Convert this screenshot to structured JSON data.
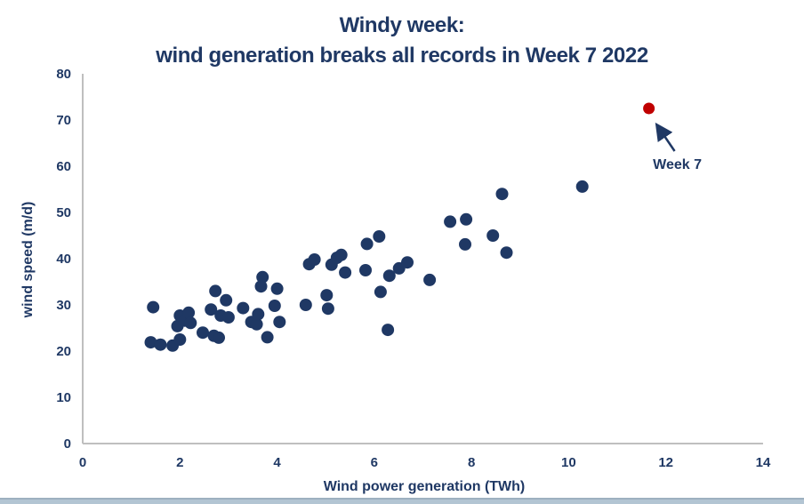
{
  "title": {
    "line1": "Windy week:",
    "line2": "wind generation breaks all records in Week 7 2022"
  },
  "colors": {
    "navy": "#1f3864",
    "record_red": "#c00000",
    "axis_gray": "#bfbfbf",
    "bottom_strip": "#b3c5d3"
  },
  "chart_data": {
    "type": "scatter",
    "title": "Windy week: wind generation breaks all records in Week 7 2022",
    "xlabel": "Wind power generation (TWh)",
    "ylabel": "wind speed (m/d)",
    "xlim": [
      0,
      14
    ],
    "ylim": [
      0,
      80
    ],
    "xticks": [
      0,
      2,
      4,
      6,
      8,
      10,
      12,
      14
    ],
    "yticks": [
      0,
      10,
      20,
      30,
      40,
      50,
      60,
      70,
      80
    ],
    "grid": false,
    "legend": "none",
    "series": [
      {
        "color": "#1f3864",
        "points": [
          [
            1.45,
            29.5
          ],
          [
            1.4,
            21.9
          ],
          [
            1.6,
            21.4
          ],
          [
            1.85,
            21.2
          ],
          [
            2.0,
            22.5
          ],
          [
            1.95,
            25.4
          ],
          [
            2.0,
            27.7
          ],
          [
            2.1,
            26.6
          ],
          [
            2.18,
            28.3
          ],
          [
            2.22,
            26.1
          ],
          [
            2.47,
            24.0
          ],
          [
            2.64,
            29.0
          ],
          [
            2.73,
            33.0
          ],
          [
            2.95,
            31.0
          ],
          [
            2.84,
            27.7
          ],
          [
            3.0,
            27.3
          ],
          [
            2.7,
            23.3
          ],
          [
            2.8,
            22.9
          ],
          [
            3.3,
            29.3
          ],
          [
            3.47,
            26.3
          ],
          [
            3.58,
            25.8
          ],
          [
            3.61,
            28.0
          ],
          [
            3.7,
            36.0
          ],
          [
            3.67,
            34.0
          ],
          [
            4.0,
            33.5
          ],
          [
            3.95,
            29.8
          ],
          [
            4.05,
            26.3
          ],
          [
            3.8,
            23.0
          ],
          [
            4.59,
            30.0
          ],
          [
            5.02,
            32.1
          ],
          [
            5.05,
            29.2
          ],
          [
            4.66,
            38.8
          ],
          [
            4.77,
            39.8
          ],
          [
            5.12,
            38.7
          ],
          [
            5.23,
            40.2
          ],
          [
            5.32,
            40.8
          ],
          [
            5.4,
            37.0
          ],
          [
            5.85,
            43.2
          ],
          [
            6.1,
            44.8
          ],
          [
            5.82,
            37.5
          ],
          [
            6.31,
            36.3
          ],
          [
            6.13,
            32.8
          ],
          [
            6.51,
            37.9
          ],
          [
            6.68,
            39.2
          ],
          [
            6.28,
            24.6
          ],
          [
            7.14,
            35.4
          ],
          [
            7.56,
            48.0
          ],
          [
            7.89,
            48.5
          ],
          [
            7.87,
            43.1
          ],
          [
            8.44,
            45.0
          ],
          [
            8.63,
            54.0
          ],
          [
            8.72,
            41.3
          ],
          [
            10.28,
            55.6
          ]
        ]
      },
      {
        "name": "Week 7",
        "color": "#c00000",
        "points": [
          [
            11.65,
            72.5
          ]
        ]
      }
    ],
    "annotation": {
      "text": "Week 7",
      "target": [
        11.65,
        72.5
      ]
    }
  }
}
